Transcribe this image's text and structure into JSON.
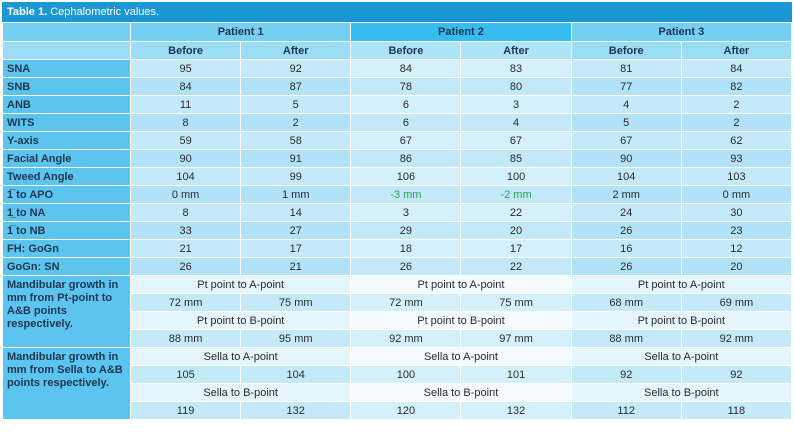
{
  "title": {
    "label": "Table 1.",
    "text": "Cephalometric values."
  },
  "patients": [
    "Patient 1",
    "Patient 2",
    "Patient 3"
  ],
  "subheaders": [
    "Before",
    "After",
    "Before",
    "After",
    "Before",
    "After"
  ],
  "rows": [
    {
      "label": "SNA",
      "values": [
        95,
        92,
        84,
        83,
        81,
        84
      ]
    },
    {
      "label": "SNB",
      "values": [
        84,
        87,
        78,
        80,
        77,
        82
      ]
    },
    {
      "label": "ANB",
      "values": [
        11,
        5,
        6,
        3,
        4,
        2
      ]
    },
    {
      "label": "WITS",
      "values": [
        8,
        2,
        6,
        4,
        5,
        2
      ]
    },
    {
      "label": "Y-axis",
      "values": [
        59,
        58,
        67,
        67,
        67,
        62
      ]
    },
    {
      "label": "Facial Angle",
      "values": [
        90,
        91,
        86,
        85,
        90,
        93
      ]
    },
    {
      "label": "Tweed Angle",
      "values": [
        104,
        99,
        106,
        100,
        104,
        103
      ]
    },
    {
      "label": "1̅ to APO",
      "values": [
        "0 mm",
        "1 mm",
        "-3 mm",
        "-2 mm",
        "2 mm",
        "0 mm"
      ]
    },
    {
      "label": "1̲ to NA",
      "values": [
        8,
        14,
        3,
        22,
        24,
        30
      ]
    },
    {
      "label": "1̅ to NB",
      "values": [
        33,
        27,
        29,
        20,
        26,
        23
      ]
    },
    {
      "label": "FH: GoGn",
      "values": [
        21,
        17,
        18,
        17,
        16,
        12
      ]
    },
    {
      "label": "GoGn: SN",
      "values": [
        26,
        21,
        26,
        22,
        26,
        20
      ]
    }
  ],
  "highlight": {
    "row": 7,
    "cells": [
      2,
      3
    ],
    "color": "#23a34a"
  },
  "groups": [
    {
      "label": "Mandibular growth in mm from Pt-point to A&B points respectively.",
      "parts": [
        {
          "headings": [
            "Pt point to A-point",
            "Pt point to A-point",
            "Pt point to A-point"
          ],
          "values": [
            "72 mm",
            "75 mm",
            "72 mm",
            "75 mm",
            "68 mm",
            "69 mm"
          ]
        },
        {
          "headings": [
            "Pt point to B-point",
            "Pt point to B-point",
            "Pt point to B-point"
          ],
          "values": [
            "88 mm",
            "95 mm",
            "92 mm",
            "97 mm",
            "88 mm",
            "92 mm"
          ]
        }
      ]
    },
    {
      "label": "Mandibular growth in mm from Sella to A&B points respectively.",
      "parts": [
        {
          "headings": [
            "Sella to A-point",
            "Sella to A-point",
            "Sella to A-point"
          ],
          "values": [
            105,
            104,
            100,
            101,
            92,
            92
          ]
        },
        {
          "headings": [
            "Sella to B-point",
            "Sella to B-point",
            "Sella to B-point"
          ],
          "values": [
            119,
            132,
            120,
            132,
            112,
            118
          ]
        }
      ]
    }
  ]
}
